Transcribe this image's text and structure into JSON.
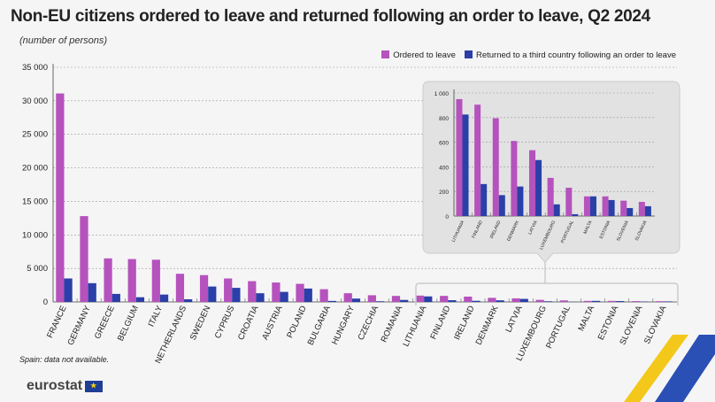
{
  "title": "Non-EU citizens ordered to leave and returned following an order to leave, Q2 2024",
  "subtitle": "(number of persons)",
  "note": "Spain: data not available.",
  "logo": "eurostat",
  "colors": {
    "ordered": "#b552bd",
    "returned": "#2a3fa8",
    "inset_bg": "#e2e2e2",
    "decor_yellow": "#f3c81b",
    "decor_blue": "#2a4fb5"
  },
  "chart_data": [
    {
      "type": "bar",
      "legend_position": "top-right",
      "grid": true,
      "ylim": [
        0,
        35000
      ],
      "yticks": [
        0,
        5000,
        10000,
        15000,
        20000,
        25000,
        30000,
        35000
      ],
      "ytick_labels": [
        "0",
        "5 000",
        "10 000",
        "15 000",
        "20 000",
        "25 000",
        "30 000",
        "35 000"
      ],
      "categories": [
        "FRANCE",
        "GERMANY",
        "GREECE",
        "BELGIUM",
        "ITALY",
        "NETHERLANDS",
        "SWEDEN",
        "CYPRUS",
        "CROATIA",
        "AUSTRIA",
        "POLAND",
        "BULGARIA",
        "HUNGARY",
        "CZECHIA",
        "ROMANIA",
        "LITHUANIA",
        "FINLAND",
        "IRELAND",
        "DENMARK",
        "LATVIA",
        "LUXEMBOURG",
        "PORTUGAL",
        "MALTA",
        "ESTONIA",
        "SLOVENIA",
        "SLOVAKIA"
      ],
      "series": [
        {
          "name": "Ordered to leave",
          "values": [
            31100,
            12800,
            6500,
            6400,
            6300,
            4200,
            4000,
            3500,
            3100,
            2900,
            2700,
            1900,
            1300,
            1000,
            900,
            950,
            905,
            795,
            610,
            535,
            310,
            230,
            160,
            160,
            125,
            115
          ]
        },
        {
          "name": "Returned to a third country following an order to leave",
          "values": [
            3500,
            2800,
            1200,
            700,
            1100,
            400,
            2300,
            2100,
            1300,
            1500,
            2000,
            150,
            500,
            100,
            300,
            825,
            260,
            170,
            240,
            455,
            95,
            15,
            160,
            130,
            65,
            80
          ]
        }
      ]
    },
    {
      "type": "bar",
      "grid": true,
      "ylim": [
        0,
        1000
      ],
      "yticks": [
        0,
        200,
        400,
        600,
        800,
        1000
      ],
      "ytick_labels": [
        "0",
        "200",
        "400",
        "600",
        "800",
        "1 000"
      ],
      "categories": [
        "LITHUANIA",
        "FINLAND",
        "IRELAND",
        "DENMARK",
        "LATVIA",
        "LUXEMBOURG",
        "PORTUGAL",
        "MALTA",
        "ESTONIA",
        "SLOVENIA",
        "SLOVAKIA"
      ],
      "series": [
        {
          "name": "Ordered to leave",
          "values": [
            950,
            905,
            795,
            610,
            535,
            310,
            230,
            160,
            160,
            125,
            115
          ]
        },
        {
          "name": "Returned to a third country following an order to leave",
          "values": [
            825,
            260,
            170,
            240,
            455,
            95,
            15,
            160,
            130,
            65,
            80
          ]
        }
      ]
    }
  ]
}
